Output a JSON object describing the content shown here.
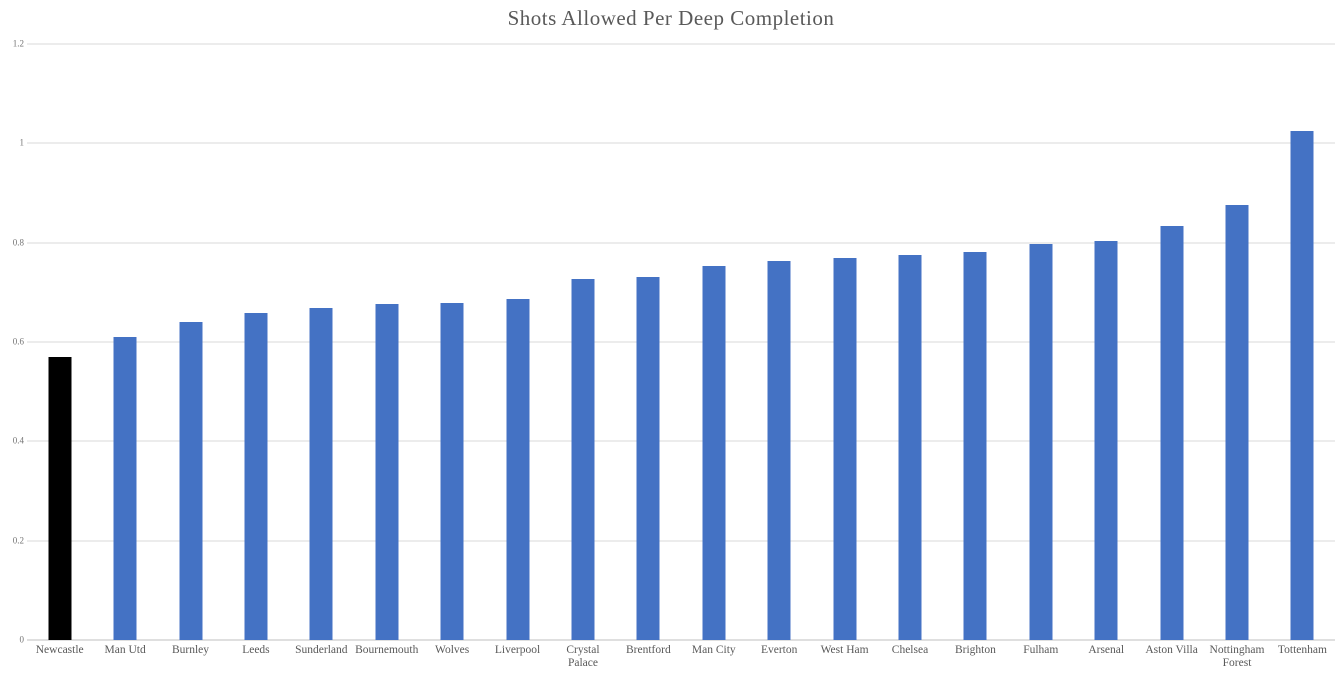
{
  "chart_data": {
    "type": "bar",
    "title": "Shots Allowed Per Deep Completion",
    "categories": [
      "Newcastle",
      "Man Utd",
      "Burnley",
      "Leeds",
      "Sunderland",
      "Bournemouth",
      "Wolves",
      "Liverpool",
      "Crystal Palace",
      "Brentford",
      "Man City",
      "Everton",
      "West Ham",
      "Chelsea",
      "Brighton",
      "Fulham",
      "Arsenal",
      "Aston Villa",
      "Nottingham Forest",
      "Tottenham"
    ],
    "values": [
      0.569,
      0.61,
      0.64,
      0.658,
      0.669,
      0.676,
      0.678,
      0.687,
      0.726,
      0.731,
      0.754,
      0.764,
      0.77,
      0.776,
      0.781,
      0.798,
      0.803,
      0.834,
      0.875,
      1.024
    ],
    "xlabel": "",
    "ylabel": "",
    "ylim": [
      0,
      1.2
    ],
    "yticks": [
      0,
      0.2,
      0.4,
      0.6,
      0.8,
      1,
      1.2
    ],
    "ytick_labels": [
      "0",
      "0.2",
      "0.4",
      "0.6",
      "0.8",
      "1",
      "1.2"
    ],
    "grid": "horizontal",
    "legend": "none",
    "bar_color_default": "#4472C4",
    "bar_color_highlight": "#000000",
    "highlight_category": "Newcastle"
  },
  "colors": {
    "background": "#ffffff",
    "gridline": "#d9d9d9",
    "axis_line": "#bfbfbf",
    "title_text": "#595959",
    "x_label_text": "#595959",
    "y_tick_text": "#737373"
  }
}
